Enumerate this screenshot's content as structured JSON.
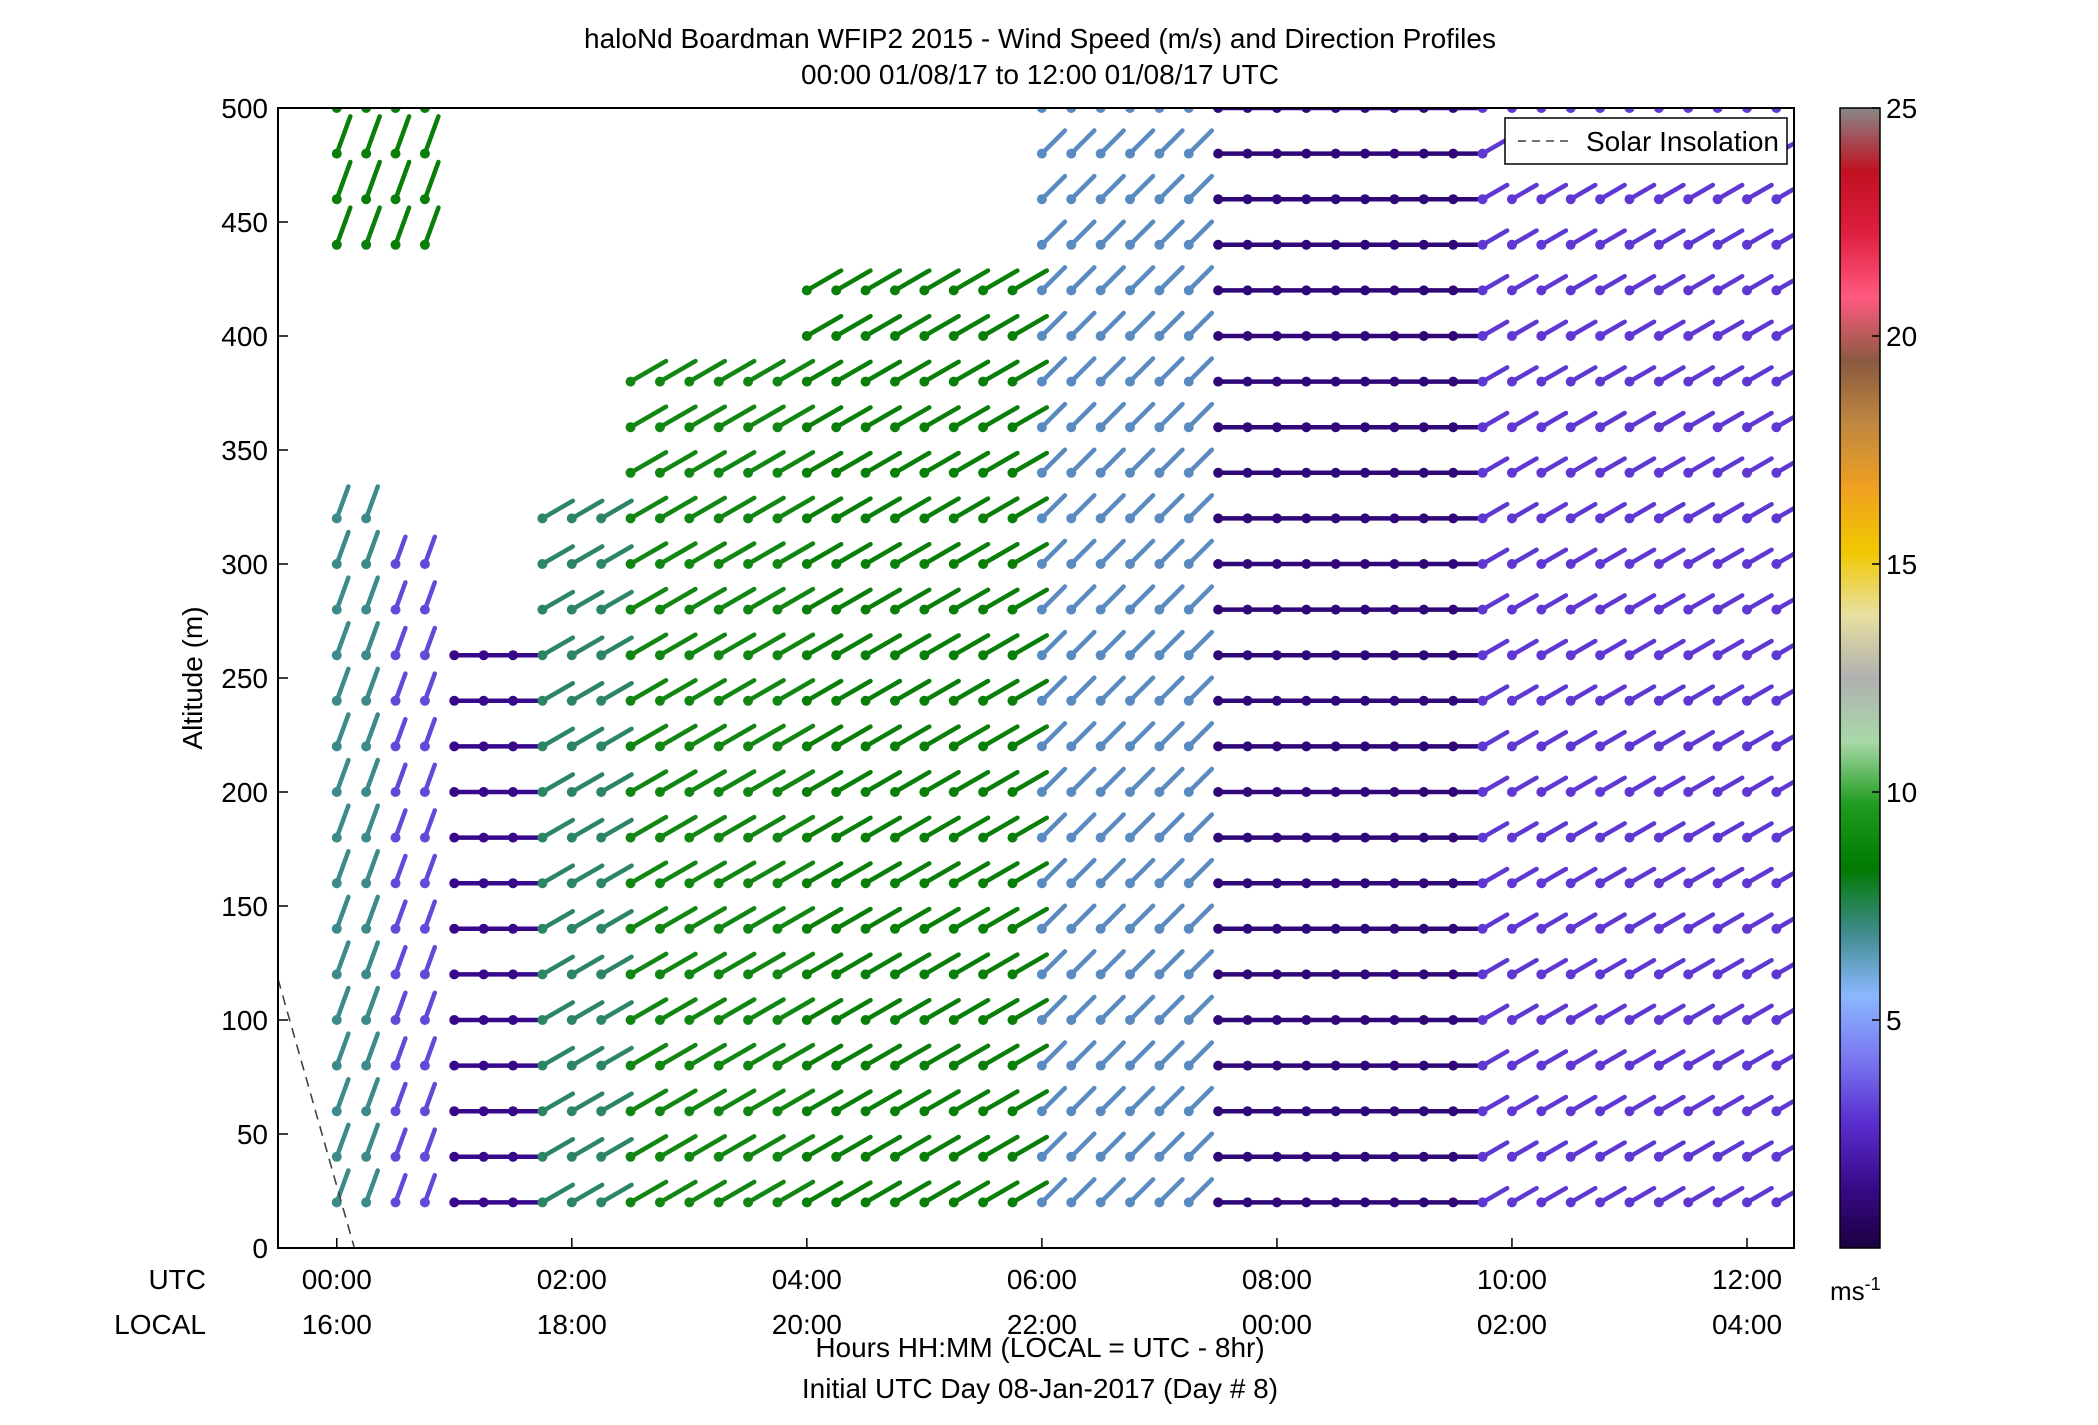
{
  "chart_data": {
    "type": "wind_barb_profile",
    "title": "haloNd Boardman WFIP2 2015 - Wind Speed (m/s) and Direction Profiles",
    "subtitle": "00:00 01/08/17 to 12:00 01/08/17  UTC",
    "ylabel": "Altitude (m)",
    "xlabel_line1": "Hours HH:MM  (LOCAL = UTC - 8hr)",
    "xlabel_line2": "Initial UTC Day 08-Jan-2017 (Day # 8)",
    "utc_row_label": "UTC",
    "local_row_label": "LOCAL",
    "xlim_hours": [
      -0.5,
      12.4
    ],
    "ylim": [
      0,
      500
    ],
    "yticks": [
      0,
      50,
      100,
      150,
      200,
      250,
      300,
      350,
      400,
      450,
      500
    ],
    "xticks_hours": [
      0,
      2,
      4,
      6,
      8,
      10,
      12
    ],
    "xtick_labels_utc": [
      "00:00",
      "02:00",
      "04:00",
      "06:00",
      "08:00",
      "10:00",
      "12:00"
    ],
    "xtick_labels_local": [
      "16:00",
      "18:00",
      "20:00",
      "22:00",
      "00:00",
      "02:00",
      "04:00"
    ],
    "legend": {
      "label": "Solar Insolation",
      "placement": "top-right",
      "line_style": "dashed",
      "color": "#444444"
    },
    "solar_insolation": {
      "x_hours": [
        -0.5,
        0.15
      ],
      "y": [
        118,
        0
      ]
    },
    "colorbar": {
      "unit_label": "ms",
      "unit_exponent": "-1",
      "range": [
        0,
        25
      ],
      "ticks": [
        5,
        10,
        15,
        20,
        25
      ],
      "colors": [
        "#1a0040",
        "#3a0a8c",
        "#5a2fd0",
        "#7a78f0",
        "#8ab8ff",
        "#3e8a8a",
        "#007a00",
        "#1f9c1f",
        "#a8d8a8",
        "#b0b0b0",
        "#e8e0a0",
        "#f0c800",
        "#f0a020",
        "#c08840",
        "#8a5a40",
        "#ff5a80",
        "#e02040",
        "#c01020",
        "#888888"
      ]
    },
    "wind_profiles": {
      "altitudes_m": [
        20,
        40,
        60,
        80,
        100,
        120,
        140,
        160,
        180,
        200,
        220,
        240,
        260,
        280,
        300,
        320,
        340,
        360,
        380,
        400,
        420,
        440,
        460,
        480,
        500
      ],
      "time_step_hours": 0.25,
      "regimes": [
        {
          "start_hour": 0.0,
          "end_hour": 0.5,
          "speed_ms": 5.0,
          "direction_deg": 20,
          "max_alt_m": 330
        },
        {
          "start_hour": 0.5,
          "end_hour": 0.9,
          "speed_ms": 3.2,
          "direction_deg": 20,
          "max_alt_m": 300
        },
        {
          "start_hour": 0.9,
          "end_hour": 1.6,
          "speed_ms": 1.8,
          "direction_deg": 90,
          "max_alt_m": 270
        },
        {
          "start_hour": 1.6,
          "end_hour": 2.5,
          "speed_ms": 5.4,
          "direction_deg": 60,
          "max_alt_m": 330
        },
        {
          "start_hour": 2.5,
          "end_hour": 4.0,
          "speed_ms": 7.5,
          "direction_deg": 60,
          "max_alt_m": 390
        },
        {
          "start_hour": 4.0,
          "end_hour": 6.0,
          "speed_ms": 7.0,
          "direction_deg": 60,
          "max_alt_m": 420
        },
        {
          "start_hour": 6.0,
          "end_hour": 7.3,
          "speed_ms": 4.5,
          "direction_deg": 45,
          "max_alt_m": 500
        },
        {
          "start_hour": 7.3,
          "end_hour": 9.6,
          "speed_ms": 1.5,
          "direction_deg": 90,
          "max_alt_m": 500
        },
        {
          "start_hour": 9.6,
          "end_hour": 12.4,
          "speed_ms": 3.0,
          "direction_deg": 60,
          "max_alt_m": 500
        }
      ],
      "upper_layer": {
        "start_hour": 0.0,
        "end_hour": 0.8,
        "speed_ms": 7.0,
        "direction_deg": 20,
        "min_alt_m": 440,
        "max_alt_m": 500
      }
    }
  }
}
